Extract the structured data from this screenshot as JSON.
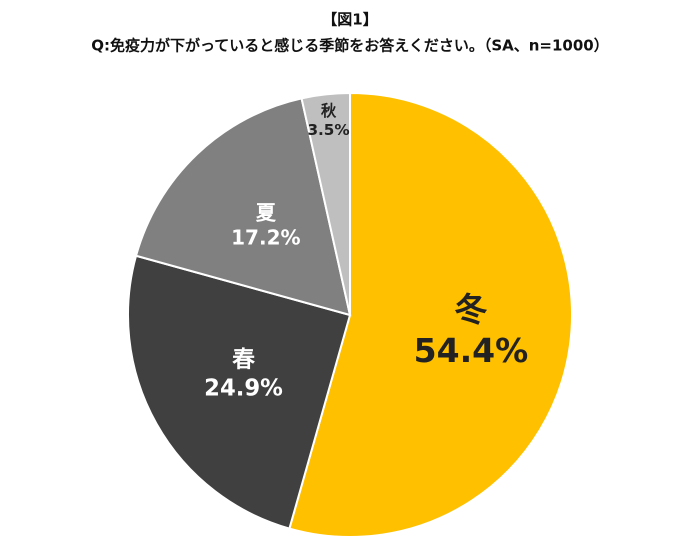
{
  "chart_data": {
    "type": "pie",
    "title": "【図1】",
    "subtitle": "Q:免疫力が下がっていると感じる季節をお答えください。（SA、n=1000）",
    "categories": [
      "冬",
      "春",
      "夏",
      "秋"
    ],
    "values": [
      54.4,
      24.9,
      17.2,
      3.5
    ],
    "value_labels": [
      "54.4%",
      "24.9%",
      "17.2%",
      "3.5%"
    ],
    "colors": [
      "#FFC000",
      "#404040",
      "#808080",
      "#BFBFBF"
    ]
  }
}
